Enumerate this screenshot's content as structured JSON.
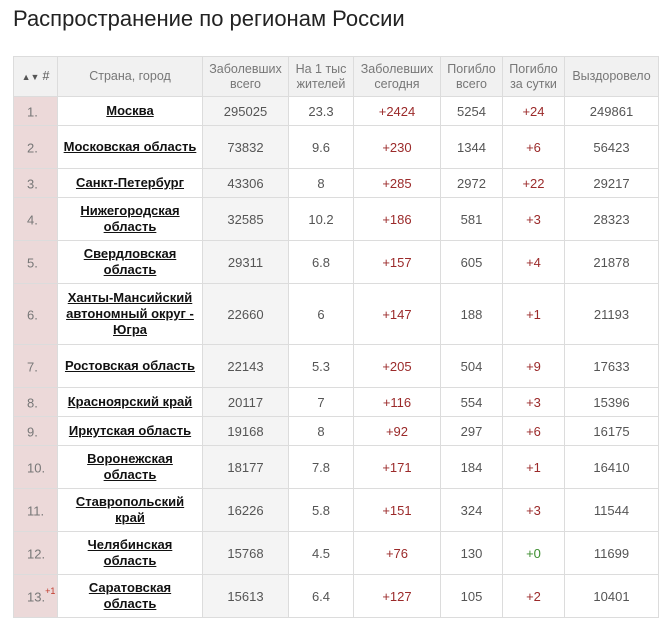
{
  "title": "Распространение по регионам России",
  "headers": {
    "rank": "#",
    "region": "Страна, город",
    "cases": "Заболевших всего",
    "per1000": "На 1 тыс жителей",
    "today": "Заболевших сегодня",
    "deaths": "Погибло всего",
    "deaths_day": "Погибло за сутки",
    "recovered": "Выздоровело"
  },
  "rows": [
    {
      "rank": "1.",
      "badge": "",
      "name": "Москва",
      "cases": "295025",
      "per1000": "23.3",
      "today": "+2424",
      "deaths": "5254",
      "deaths_day": "+24",
      "recovered": "249861"
    },
    {
      "rank": "2.",
      "badge": "",
      "name": "Московская область",
      "cases": "73832",
      "per1000": "9.6",
      "today": "+230",
      "deaths": "1344",
      "deaths_day": "+6",
      "recovered": "56423"
    },
    {
      "rank": "3.",
      "badge": "",
      "name": "Санкт-Петербург",
      "cases": "43306",
      "per1000": "8",
      "today": "+285",
      "deaths": "2972",
      "deaths_day": "+22",
      "recovered": "29217"
    },
    {
      "rank": "4.",
      "badge": "",
      "name": "Нижегородская область",
      "cases": "32585",
      "per1000": "10.2",
      "today": "+186",
      "deaths": "581",
      "deaths_day": "+3",
      "recovered": "28323"
    },
    {
      "rank": "5.",
      "badge": "",
      "name": "Свердловская область",
      "cases": "29311",
      "per1000": "6.8",
      "today": "+157",
      "deaths": "605",
      "deaths_day": "+4",
      "recovered": "21878"
    },
    {
      "rank": "6.",
      "badge": "",
      "name": "Ханты-Мансийский автономный округ - Югра",
      "cases": "22660",
      "per1000": "6",
      "today": "+147",
      "deaths": "188",
      "deaths_day": "+1",
      "recovered": "21193"
    },
    {
      "rank": "7.",
      "badge": "",
      "name": "Ростовская область",
      "cases": "22143",
      "per1000": "5.3",
      "today": "+205",
      "deaths": "504",
      "deaths_day": "+9",
      "recovered": "17633"
    },
    {
      "rank": "8.",
      "badge": "",
      "name": "Красноярский край",
      "cases": "20117",
      "per1000": "7",
      "today": "+116",
      "deaths": "554",
      "deaths_day": "+3",
      "recovered": "15396"
    },
    {
      "rank": "9.",
      "badge": "",
      "name": "Иркутская область",
      "cases": "19168",
      "per1000": "8",
      "today": "+92",
      "deaths": "297",
      "deaths_day": "+6",
      "recovered": "16175"
    },
    {
      "rank": "10.",
      "badge": "",
      "name": "Воронежская область",
      "cases": "18177",
      "per1000": "7.8",
      "today": "+171",
      "deaths": "184",
      "deaths_day": "+1",
      "recovered": "16410"
    },
    {
      "rank": "11.",
      "badge": "",
      "name": "Ставропольский край",
      "cases": "16226",
      "per1000": "5.8",
      "today": "+151",
      "deaths": "324",
      "deaths_day": "+3",
      "recovered": "11544"
    },
    {
      "rank": "12.",
      "badge": "",
      "name": "Челябинская область",
      "cases": "15768",
      "per1000": "4.5",
      "today": "+76",
      "deaths": "130",
      "deaths_day": "+0",
      "recovered": "11699"
    },
    {
      "rank": "13.",
      "badge": "+1",
      "name": "Саратовская область",
      "cases": "15613",
      "per1000": "6.4",
      "today": "+127",
      "deaths": "105",
      "deaths_day": "+2",
      "recovered": "10401"
    }
  ]
}
